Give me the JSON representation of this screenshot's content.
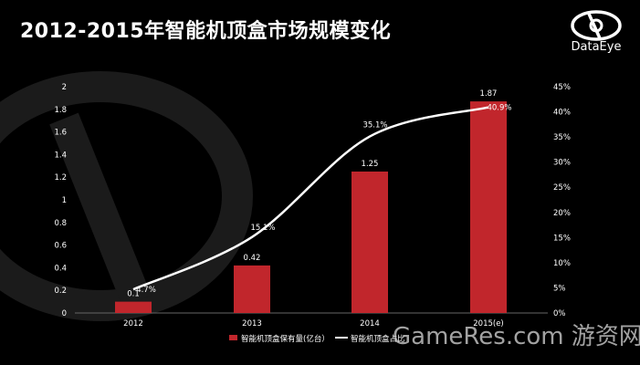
{
  "header": {
    "title": "2012-2015年智能机顶盒市场规模变化",
    "brand": "DataEye"
  },
  "watermark": "GameRes.com 游资网",
  "colors": {
    "background": "#000000",
    "bar": "#c1262c",
    "line": "#ffffff",
    "text": "#ffffff"
  },
  "chart_data": {
    "type": "bar+line",
    "categories": [
      "2012",
      "2013",
      "2014",
      "2015(e)"
    ],
    "series": [
      {
        "name": "智能机顶盒保有量(亿台）",
        "type": "bar",
        "axis": "left",
        "values": [
          0.1,
          0.42,
          1.25,
          1.87
        ],
        "labels": [
          "0.1",
          "0.42",
          "1.25",
          "1.87"
        ]
      },
      {
        "name": "智能机顶盒占比",
        "type": "line",
        "axis": "right",
        "values": [
          4.7,
          15.1,
          35.1,
          40.9
        ],
        "labels": [
          "4.7%",
          "15.1%",
          "35.1%",
          "40.9%"
        ]
      }
    ],
    "y_left": {
      "min": 0,
      "max": 2,
      "ticks": [
        "0",
        "0.2",
        "0.4",
        "0.6",
        "0.8",
        "1",
        "1.2",
        "1.4",
        "1.6",
        "1.8",
        "2"
      ]
    },
    "y_right": {
      "min": 0,
      "max": 45,
      "ticks": [
        "0%",
        "5%",
        "10%",
        "15%",
        "20%",
        "25%",
        "30%",
        "35%",
        "40%",
        "45%"
      ]
    },
    "grid": false,
    "legend": "bottom"
  }
}
